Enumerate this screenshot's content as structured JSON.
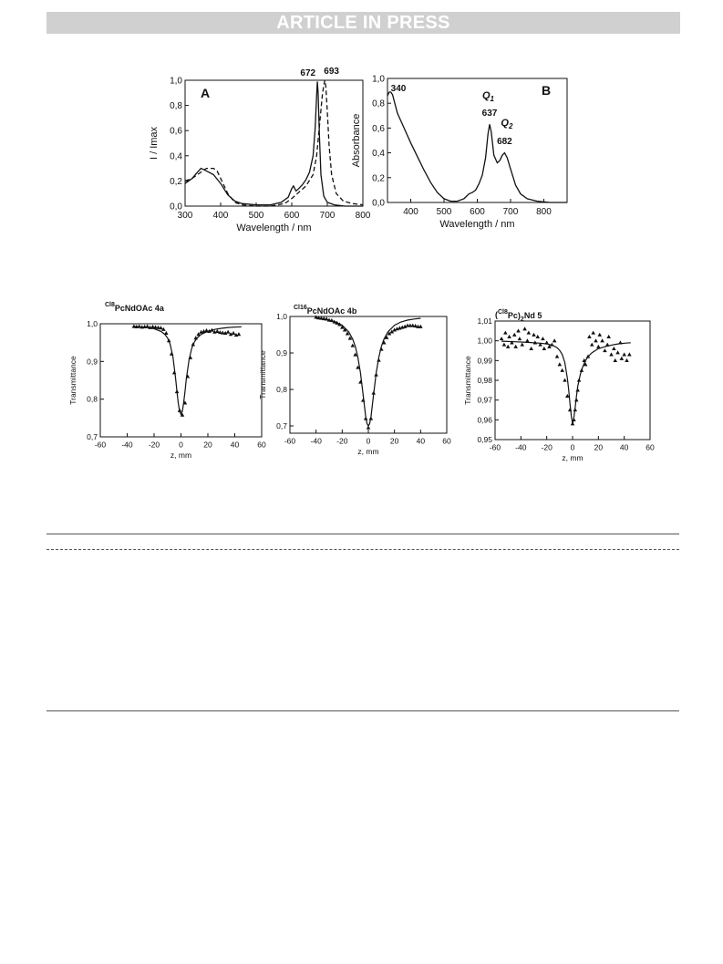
{
  "header": {
    "banner_text": "ARTICLE IN PRESS"
  },
  "chart_data": [
    {
      "id": "A",
      "type": "line",
      "panel_label": "A",
      "xlabel": "Wavelength / nm",
      "ylabel": "I / Imax",
      "xlim": [
        300,
        800
      ],
      "ylim": [
        0.0,
        1.0
      ],
      "xticks": [
        "300",
        "400",
        "500",
        "600",
        "700",
        "800"
      ],
      "yticks": [
        "0,0",
        "0,2",
        "0,4",
        "0,6",
        "0,8",
        "1,0"
      ],
      "peak_labels": [
        {
          "text": "672",
          "x": 672,
          "y": 1.0
        },
        {
          "text": "693",
          "x": 693,
          "y": 1.0
        }
      ],
      "series": [
        {
          "style": "solid",
          "x": [
            300,
            320,
            335,
            345,
            360,
            380,
            400,
            420,
            440,
            460,
            500,
            540,
            570,
            590,
            600,
            605,
            612,
            620,
            630,
            640,
            650,
            660,
            666,
            670,
            672,
            674,
            678,
            682,
            690,
            700,
            720,
            750,
            800
          ],
          "y": [
            0.18,
            0.22,
            0.27,
            0.3,
            0.28,
            0.25,
            0.18,
            0.09,
            0.04,
            0.02,
            0.01,
            0.01,
            0.03,
            0.07,
            0.14,
            0.16,
            0.12,
            0.14,
            0.17,
            0.21,
            0.27,
            0.4,
            0.62,
            0.88,
            0.99,
            0.9,
            0.55,
            0.25,
            0.08,
            0.03,
            0.01,
            0.0,
            0.0
          ]
        },
        {
          "style": "dashed",
          "x": [
            300,
            320,
            340,
            360,
            380,
            390,
            400,
            420,
            440,
            460,
            500,
            540,
            580,
            600,
            620,
            640,
            660,
            670,
            680,
            686,
            690,
            693,
            696,
            700,
            705,
            712,
            725,
            745,
            770,
            800
          ],
          "y": [
            0.2,
            0.22,
            0.26,
            0.3,
            0.3,
            0.28,
            0.22,
            0.1,
            0.03,
            0.01,
            0.0,
            0.0,
            0.02,
            0.06,
            0.11,
            0.16,
            0.25,
            0.4,
            0.7,
            0.88,
            0.96,
            1.0,
            0.95,
            0.75,
            0.48,
            0.25,
            0.1,
            0.04,
            0.02,
            0.01
          ]
        }
      ]
    },
    {
      "id": "B",
      "type": "line",
      "panel_label": "B",
      "xlabel": "Wavelength / nm",
      "ylabel": "Absorbance",
      "xlim": [
        330,
        870
      ],
      "ylim": [
        0.0,
        1.0
      ],
      "xticks": [
        "400",
        "500",
        "600",
        "700",
        "800"
      ],
      "yticks": [
        "0,0",
        "0,2",
        "0,4",
        "0,6",
        "0,8",
        "1,0"
      ],
      "annotations": [
        {
          "text": "340"
        },
        {
          "text": "Q",
          "sub": "1",
          "italic": true
        },
        {
          "text": "637"
        },
        {
          "text": "Q",
          "sub": "2",
          "italic": true
        },
        {
          "text": "682"
        }
      ],
      "series": [
        {
          "style": "solid",
          "x": [
            330,
            335,
            340,
            345,
            350,
            360,
            380,
            400,
            420,
            440,
            460,
            480,
            500,
            520,
            540,
            560,
            575,
            585,
            595,
            605,
            615,
            625,
            632,
            637,
            642,
            650,
            660,
            668,
            675,
            682,
            690,
            700,
            715,
            730,
            750,
            780,
            820,
            870
          ],
          "y": [
            0.86,
            0.89,
            0.89,
            0.87,
            0.82,
            0.72,
            0.6,
            0.48,
            0.37,
            0.26,
            0.16,
            0.08,
            0.03,
            0.01,
            0.01,
            0.03,
            0.07,
            0.08,
            0.1,
            0.15,
            0.22,
            0.36,
            0.55,
            0.63,
            0.57,
            0.38,
            0.32,
            0.34,
            0.38,
            0.4,
            0.36,
            0.27,
            0.14,
            0.07,
            0.03,
            0.01,
            0.0,
            0.0
          ]
        }
      ]
    },
    {
      "id": "C1",
      "type": "scatter",
      "title_sup": "Cl8",
      "title_main": "PcNdOAc 4a",
      "xlabel": "z, mm",
      "ylabel": "Transmittance",
      "xlim": [
        -60,
        60
      ],
      "ylim": [
        0.7,
        1.0
      ],
      "xticks": [
        "-60",
        "-40",
        "-20",
        "0",
        "20",
        "40",
        "60"
      ],
      "yticks": [
        "0,7",
        "0,8",
        "0,9",
        "1,0"
      ],
      "points": {
        "x": [
          -35,
          -33,
          -31,
          -29,
          -27,
          -25,
          -23,
          -21,
          -19,
          -17,
          -15,
          -13,
          -11,
          -9,
          -7,
          -5,
          -3,
          -1,
          1,
          3,
          5,
          7,
          9,
          11,
          13,
          15,
          17,
          19,
          21,
          23,
          25,
          27,
          29,
          31,
          33,
          35,
          37,
          39,
          41,
          43
        ],
        "y": [
          0.993,
          0.992,
          0.993,
          0.991,
          0.992,
          0.993,
          0.99,
          0.992,
          0.991,
          0.99,
          0.989,
          0.985,
          0.975,
          0.955,
          0.92,
          0.87,
          0.82,
          0.77,
          0.758,
          0.79,
          0.86,
          0.91,
          0.945,
          0.962,
          0.972,
          0.978,
          0.98,
          0.982,
          0.98,
          0.983,
          0.978,
          0.98,
          0.977,
          0.976,
          0.975,
          0.978,
          0.972,
          0.975,
          0.97,
          0.972
        ]
      },
      "fit": {
        "x": [
          -35,
          -30,
          -25,
          -20,
          -15,
          -12,
          -10,
          -8,
          -6,
          -4,
          -3,
          -2,
          -1,
          0,
          1,
          2,
          3,
          4,
          6,
          8,
          10,
          12,
          15,
          20,
          25,
          30,
          35,
          40,
          45
        ],
        "y": [
          0.993,
          0.991,
          0.99,
          0.987,
          0.98,
          0.972,
          0.962,
          0.945,
          0.912,
          0.855,
          0.82,
          0.79,
          0.768,
          0.76,
          0.768,
          0.79,
          0.82,
          0.855,
          0.905,
          0.935,
          0.952,
          0.962,
          0.972,
          0.98,
          0.985,
          0.988,
          0.99,
          0.991,
          0.992
        ]
      }
    },
    {
      "id": "C2",
      "type": "scatter",
      "title_sup": "Cl16",
      "title_main": "PcNdOAc 4b",
      "xlabel": "z, mm",
      "ylabel": "Transmittance",
      "xlim": [
        -60,
        60
      ],
      "ylim": [
        0.68,
        1.0
      ],
      "xticks": [
        "-60",
        "-40",
        "-20",
        "0",
        "20",
        "40",
        "60"
      ],
      "yticks": [
        "0,7",
        "0,8",
        "0,9",
        "1,0"
      ],
      "points": {
        "x": [
          -40,
          -38,
          -36,
          -34,
          -32,
          -30,
          -28,
          -26,
          -24,
          -22,
          -20,
          -18,
          -16,
          -14,
          -12,
          -10,
          -8,
          -6,
          -4,
          -2,
          0,
          2,
          4,
          6,
          8,
          10,
          12,
          14,
          16,
          18,
          20,
          22,
          24,
          26,
          28,
          30,
          32,
          34,
          36,
          38,
          40
        ],
        "y": [
          0.998,
          0.996,
          0.995,
          0.994,
          0.993,
          0.99,
          0.989,
          0.985,
          0.982,
          0.978,
          0.97,
          0.963,
          0.953,
          0.94,
          0.92,
          0.895,
          0.86,
          0.82,
          0.77,
          0.72,
          0.695,
          0.72,
          0.79,
          0.84,
          0.88,
          0.91,
          0.928,
          0.942,
          0.953,
          0.958,
          0.963,
          0.966,
          0.968,
          0.97,
          0.972,
          0.975,
          0.975,
          0.975,
          0.974,
          0.972,
          0.972
        ]
      },
      "fit": {
        "x": [
          -40,
          -35,
          -30,
          -25,
          -20,
          -15,
          -12,
          -10,
          -8,
          -6,
          -4,
          -2,
          -1,
          0,
          1,
          2,
          4,
          6,
          8,
          10,
          12,
          15,
          20,
          25,
          30,
          35,
          40
        ],
        "y": [
          0.995,
          0.993,
          0.99,
          0.985,
          0.976,
          0.958,
          0.938,
          0.918,
          0.888,
          0.845,
          0.785,
          0.725,
          0.706,
          0.7,
          0.706,
          0.725,
          0.785,
          0.845,
          0.888,
          0.918,
          0.938,
          0.958,
          0.976,
          0.985,
          0.99,
          0.993,
          0.995
        ]
      }
    },
    {
      "id": "C3",
      "type": "scatter",
      "title_open": "(",
      "title_sup": "Cl8",
      "title_main": "Pc)",
      "title_sub": "2",
      "title_end": "Nd  5",
      "xlabel": "z, mm",
      "ylabel": "Transmittance",
      "xlim": [
        -60,
        60
      ],
      "ylim": [
        0.95,
        1.01
      ],
      "xticks": [
        "-60",
        "-40",
        "-20",
        "0",
        "20",
        "40",
        "60"
      ],
      "yticks": [
        "0,95",
        "0,96",
        "0,97",
        "0,98",
        "0,99",
        "1,00",
        "1,01"
      ],
      "points": {
        "x": [
          -55,
          -53,
          -52,
          -50,
          -49,
          -47,
          -45,
          -44,
          -42,
          -41,
          -39,
          -37,
          -35,
          -34,
          -32,
          -30,
          -29,
          -27,
          -25,
          -23,
          -22,
          -20,
          -18,
          -16,
          -14,
          -12,
          -10,
          -8,
          -6,
          -4,
          -2,
          0,
          1,
          2,
          3,
          4,
          5,
          7,
          9,
          10,
          12,
          13,
          15,
          16,
          18,
          20,
          21,
          23,
          25,
          27,
          28,
          30,
          32,
          33,
          35,
          37,
          38,
          40,
          42,
          44
        ],
        "y": [
          1.001,
          0.998,
          1.004,
          0.997,
          1.002,
          0.999,
          1.003,
          0.997,
          1.005,
          1.001,
          0.998,
          1.006,
          1.0,
          1.004,
          0.996,
          1.003,
          0.999,
          1.002,
          0.998,
          1.001,
          0.996,
          0.999,
          0.997,
          0.998,
          1.0,
          0.992,
          0.988,
          0.985,
          0.98,
          0.972,
          0.965,
          0.958,
          0.96,
          0.965,
          0.97,
          0.975,
          0.98,
          0.985,
          0.99,
          0.988,
          0.992,
          1.002,
          0.998,
          1.004,
          1.0,
          0.997,
          1.003,
          1.0,
          0.995,
          0.998,
          1.002,
          0.993,
          0.996,
          0.99,
          0.994,
          0.999,
          0.991,
          0.993,
          0.99,
          0.993
        ]
      },
      "fit": {
        "x": [
          -55,
          -45,
          -35,
          -25,
          -20,
          -15,
          -12,
          -10,
          -8,
          -6,
          -4,
          -3,
          -2,
          -1,
          0,
          1,
          2,
          3,
          4,
          6,
          8,
          10,
          12,
          15,
          20,
          25,
          30,
          35,
          40,
          45
        ],
        "y": [
          0.9998,
          0.9995,
          0.9992,
          0.9988,
          0.9984,
          0.9976,
          0.9965,
          0.9952,
          0.993,
          0.989,
          0.981,
          0.975,
          0.968,
          0.962,
          0.958,
          0.961,
          0.966,
          0.972,
          0.977,
          0.983,
          0.987,
          0.99,
          0.992,
          0.994,
          0.996,
          0.997,
          0.9978,
          0.9984,
          0.9988,
          0.999
        ]
      }
    }
  ]
}
